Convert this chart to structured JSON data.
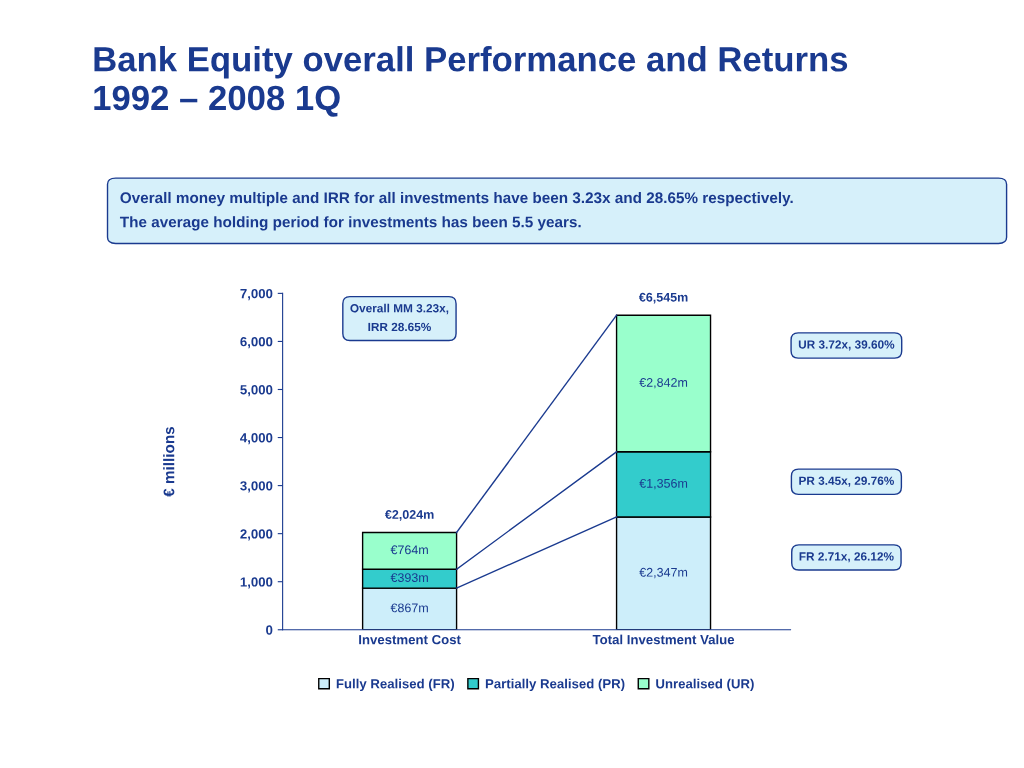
{
  "chart_data": {
    "type": "bar",
    "stacked": true,
    "title": "Bank Equity overall Performance and Returns\n1992 – 2008 1Q",
    "subtitle": "Overall money multiple and IRR for all investments have been 3.23x and 28.65% respectively.\nThe average holding period for investments has been 5.5 years.",
    "ylabel": "€ millions",
    "categories": [
      "Investment Cost",
      "Total Investment Value"
    ],
    "series": [
      {
        "name": "Fully Realised (FR)",
        "color": "#cdeefa",
        "values": [
          867,
          2347
        ],
        "value_labels": [
          "€867m",
          "€2,347m"
        ]
      },
      {
        "name": "Partially Realised (PR)",
        "color": "#33cccc",
        "values": [
          393,
          1356
        ],
        "value_labels": [
          "€393m",
          "€1,356m"
        ]
      },
      {
        "name": "Unrealised (UR)",
        "color": "#99ffcc",
        "values": [
          764,
          2842
        ],
        "value_labels": [
          "€764m",
          "€2,842m"
        ]
      }
    ],
    "totals": [
      "€2,024m",
      "€6,545m"
    ],
    "ylim": [
      0,
      7000
    ],
    "yticks": [
      0,
      {
        "value": 1000,
        "label": "1,000"
      },
      {
        "value": 2000,
        "label": "2,000"
      },
      {
        "value": 3000,
        "label": "3,000"
      },
      {
        "value": 4000,
        "label": "4,000"
      },
      {
        "value": 5000,
        "label": "5,000"
      },
      {
        "value": 6000,
        "label": "6,000"
      },
      {
        "value": 7000,
        "label": "7,000"
      }
    ],
    "annotations": [
      "Overall MM 3.23x,\nIRR 28.65%",
      "UR 3.72x, 39.60%",
      "PR 3.45x, 29.76%",
      "FR 2.71x, 26.12%"
    ],
    "legend": "bottom",
    "grid": false
  }
}
